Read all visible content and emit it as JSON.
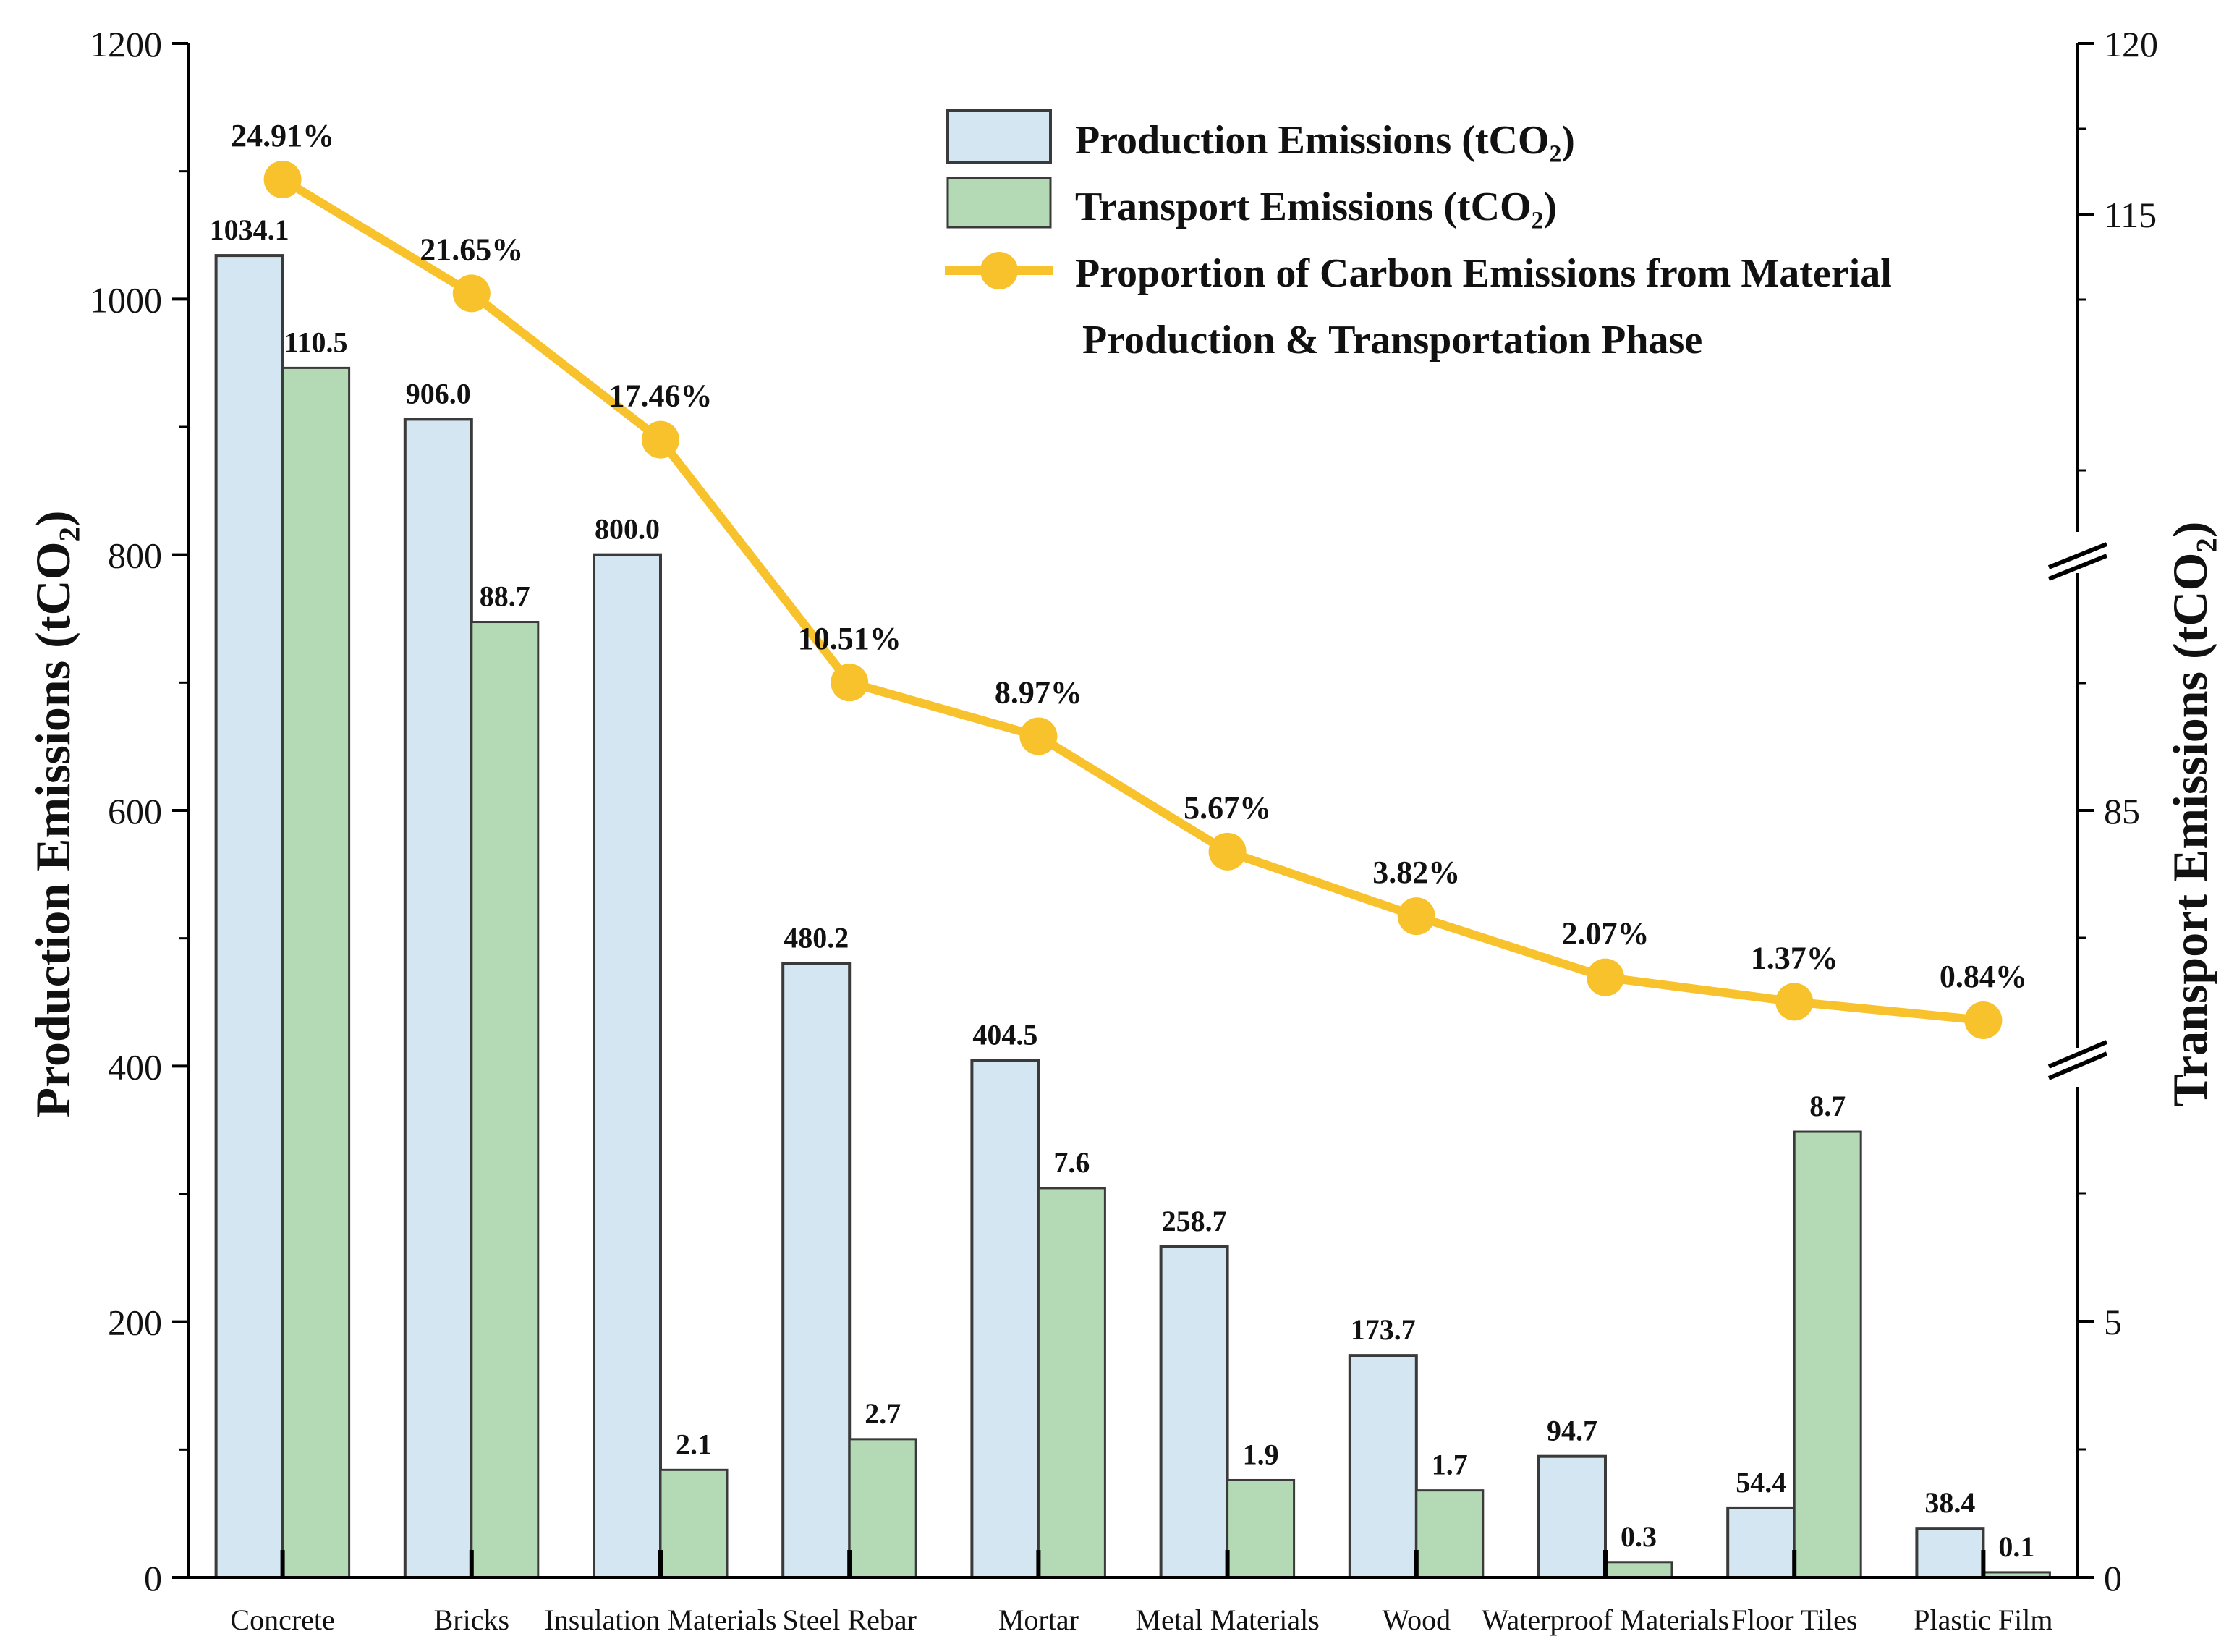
{
  "chart_data": {
    "type": "bar",
    "categories": [
      "Concrete",
      "Bricks",
      "Insulation Materials",
      "Steel Rebar",
      "Mortar",
      "Metal Materials",
      "Wood",
      "Waterproof Materials",
      "Floor Tiles",
      "Plastic Film"
    ],
    "series": [
      {
        "name": "Production Emissions (tCO₂)",
        "axis": "left",
        "color": "#d4e6f2",
        "values": [
          1034.1,
          906.0,
          800.0,
          480.2,
          404.5,
          258.7,
          173.7,
          94.7,
          54.4,
          38.4
        ],
        "labels": [
          "1034.1",
          "906.0",
          "800.0",
          "480.2",
          "404.5",
          "258.7",
          "173.7",
          "94.7",
          "54.4",
          "38.4"
        ]
      },
      {
        "name": "Transport Emissions (tCO₂)",
        "axis": "right",
        "color": "#b3dab4",
        "values": [
          110.5,
          88.7,
          2.1,
          2.7,
          7.6,
          1.9,
          1.7,
          0.3,
          8.7,
          0.1
        ],
        "labels": [
          "110.5",
          "88.7",
          "2.1",
          "2.7",
          "7.6",
          "1.9",
          "1.7",
          "0.3",
          "8.7",
          "0.1"
        ]
      },
      {
        "name": "Proportion of Carbon Emissions from Material Production & Transportation Phase",
        "type": "line",
        "color": "#f8c22c",
        "unit": "%",
        "values": [
          24.91,
          21.65,
          17.46,
          10.51,
          8.97,
          5.67,
          3.82,
          2.07,
          1.37,
          0.84
        ],
        "labels": [
          "24.91%",
          "21.65%",
          "17.46%",
          "10.51%",
          "8.97%",
          "5.67%",
          "3.82%",
          "2.07%",
          "1.37%",
          "0.84%"
        ]
      }
    ],
    "left_axis": {
      "label": "Production Emissions (tCO₂)",
      "ylim": [
        0,
        1200
      ],
      "ticks": [
        0,
        200,
        400,
        600,
        800,
        1000,
        1200
      ],
      "tick_labels": [
        "0",
        "200",
        "400",
        "600",
        "800",
        "1000",
        "1200"
      ]
    },
    "right_axis": {
      "label": "Transport Emissions (tCO₂)",
      "broken": true,
      "segments": [
        {
          "range": [
            0,
            10
          ],
          "ticks": [
            0,
            5
          ],
          "tick_labels": [
            "0",
            "5"
          ]
        },
        {
          "range": [
            80,
            90
          ],
          "ticks": [
            85
          ],
          "tick_labels": [
            "85"
          ]
        },
        {
          "range": [
            105,
            120
          ],
          "ticks": [
            115,
            120
          ],
          "tick_labels": [
            "115",
            "120"
          ]
        }
      ]
    },
    "legend": {
      "position": "top-right",
      "line3_label": "Production & Transportation Phase"
    }
  }
}
